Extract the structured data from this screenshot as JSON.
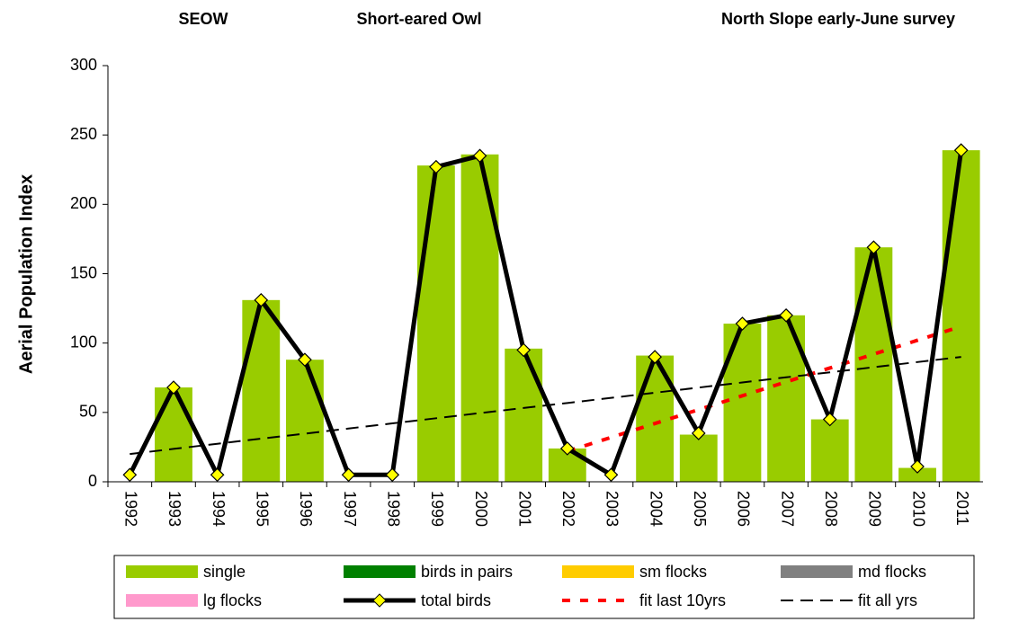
{
  "chart_data": {
    "type": "bar",
    "titles": [
      "SEOW",
      "Short-eared Owl",
      "North Slope early-June survey"
    ],
    "y_label": "Aerial Population Index",
    "categories": [
      "1992",
      "1993",
      "1994",
      "1995",
      "1996",
      "1997",
      "1998",
      "1999",
      "2000",
      "2001",
      "2002",
      "2003",
      "2004",
      "2005",
      "2006",
      "2007",
      "2008",
      "2009",
      "2010",
      "2011"
    ],
    "ylim": [
      0,
      300
    ],
    "yticks": [
      0,
      50,
      100,
      150,
      200,
      250,
      300
    ],
    "grid": false,
    "stacked": true,
    "legend": "bottom",
    "series": [
      {
        "name": "single",
        "type": "bar",
        "color": "#99cc00",
        "values": [
          0,
          68,
          0,
          131,
          88,
          0,
          0,
          228,
          236,
          96,
          24,
          0,
          91,
          34,
          114,
          120,
          45,
          169,
          10,
          239
        ]
      },
      {
        "name": "birds in pairs",
        "type": "bar",
        "color": "#008000",
        "values": [
          0,
          0,
          0,
          0,
          0,
          0,
          0,
          0,
          0,
          0,
          0,
          0,
          0,
          0,
          0,
          0,
          0,
          0,
          0,
          0
        ]
      },
      {
        "name": "sm flocks",
        "type": "bar",
        "color": "#ffcc00",
        "values": [
          0,
          0,
          0,
          0,
          0,
          0,
          0,
          0,
          0,
          0,
          0,
          0,
          0,
          0,
          0,
          0,
          0,
          0,
          0,
          0
        ]
      },
      {
        "name": "md flocks",
        "type": "bar",
        "color": "#808080",
        "values": [
          0,
          0,
          0,
          0,
          0,
          0,
          0,
          0,
          0,
          0,
          0,
          0,
          0,
          0,
          0,
          0,
          0,
          0,
          0,
          0
        ]
      },
      {
        "name": "lg flocks",
        "type": "bar",
        "color": "#ff99cc",
        "values": [
          0,
          0,
          0,
          0,
          0,
          0,
          0,
          0,
          0,
          0,
          0,
          0,
          0,
          0,
          0,
          0,
          0,
          0,
          0,
          0
        ]
      },
      {
        "name": "total birds",
        "type": "line",
        "color": "#000000",
        "marker": "diamond",
        "marker_color": "#ffff00",
        "values": [
          5,
          68,
          5,
          131,
          88,
          5,
          5,
          227,
          235,
          95,
          24,
          5,
          90,
          35,
          114,
          120,
          45,
          169,
          11,
          239
        ]
      },
      {
        "name": "fit last 10yrs",
        "type": "line",
        "color": "#ff0000",
        "line_style": "dashed",
        "values": [
          null,
          null,
          null,
          null,
          null,
          null,
          null,
          null,
          null,
          null,
          22,
          32,
          42,
          52,
          62,
          72,
          82,
          92,
          102,
          112
        ]
      },
      {
        "name": "fit all yrs",
        "type": "line",
        "color": "#000000",
        "line_style": "dashed",
        "values": [
          20,
          23.7,
          27.4,
          31.1,
          34.7,
          38.4,
          42.1,
          45.8,
          49.5,
          53.2,
          56.8,
          60.5,
          64.2,
          67.9,
          71.6,
          75.3,
          78.9,
          82.6,
          86.3,
          90
        ]
      }
    ]
  }
}
